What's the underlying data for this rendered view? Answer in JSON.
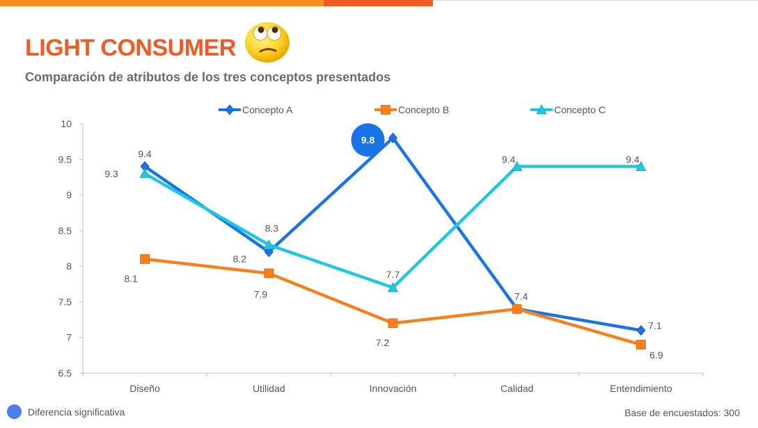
{
  "header": {
    "title": "LIGHT CONSUMER",
    "subtitle": "Comparación de atributos de los tres conceptos presentados"
  },
  "emoji_icon": "eyes-rolling-face-icon",
  "colors": {
    "concept_a": "#1a73e8",
    "concept_b": "#f7801e",
    "concept_c": "#1fc8e0",
    "highlight": "#1a73e8",
    "title": "#f15a22"
  },
  "chart_data": {
    "type": "line",
    "title": "",
    "xlabel": "",
    "ylabel": "",
    "categories": [
      "Diseño",
      "Utilidad",
      "Innovación",
      "Calidad",
      "Entendimiento"
    ],
    "ylim": [
      6.5,
      10
    ],
    "yticks": [
      "6.5",
      "7",
      "7.5",
      "8",
      "8.5",
      "9",
      "9.5",
      "10"
    ],
    "grid": false,
    "legend": "top",
    "series": [
      {
        "name": "Concepto A",
        "values": [
          9.4,
          8.2,
          9.8,
          7.4,
          7.1
        ],
        "marker": "diamond",
        "labels": [
          "9.4",
          "8.2",
          "9.8",
          "",
          "7.1"
        ]
      },
      {
        "name": "Concepto B",
        "values": [
          8.1,
          7.9,
          7.2,
          7.4,
          6.9
        ],
        "marker": "square",
        "labels": [
          "8.1",
          "7.9",
          "7.2",
          "7.4",
          "6.9"
        ]
      },
      {
        "name": "Concepto C",
        "values": [
          9.3,
          8.3,
          7.7,
          9.4,
          9.4
        ],
        "marker": "triangle",
        "labels": [
          "9.3",
          "8.3",
          "7.7",
          "9.4",
          "9.4"
        ]
      }
    ],
    "significant": [
      {
        "series": "Concepto A",
        "category": "Innovación",
        "label": "9.8"
      }
    ]
  },
  "footer": {
    "significance_label": "Diferencia significativa",
    "base_label": "Base de encuestados: 300"
  }
}
